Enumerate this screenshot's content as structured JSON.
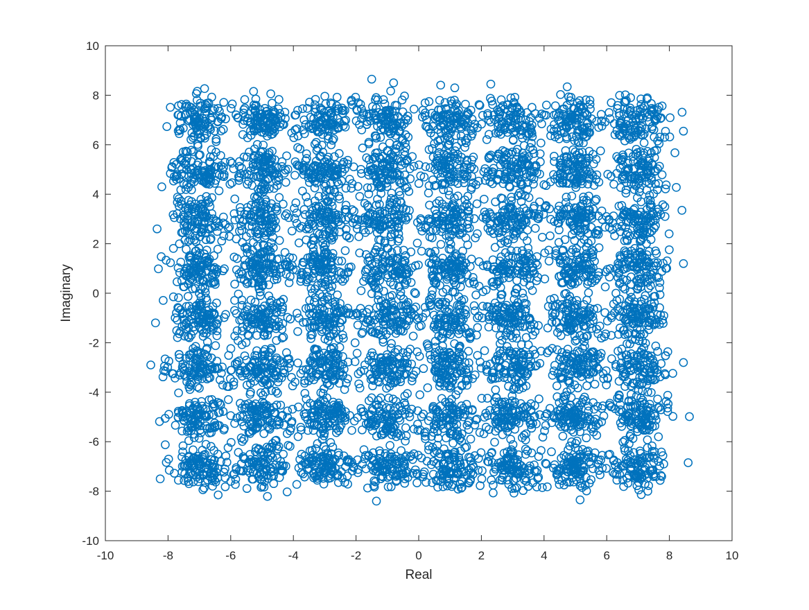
{
  "chart_data": {
    "type": "scatter",
    "title": "",
    "xlabel": "Real",
    "ylabel": "Imaginary",
    "xlim": [
      -10,
      10
    ],
    "ylim": [
      -10,
      10
    ],
    "xticks": [
      -10,
      -8,
      -6,
      -4,
      -2,
      0,
      2,
      4,
      6,
      8,
      10
    ],
    "yticks": [
      -10,
      -8,
      -6,
      -4,
      -2,
      0,
      2,
      4,
      6,
      8,
      10
    ],
    "xtick_labels": [
      "-10",
      "-8",
      "-6",
      "-4",
      "-2",
      "0",
      "2",
      "4",
      "6",
      "8",
      "10"
    ],
    "ytick_labels": [
      "-10",
      "-8",
      "-6",
      "-4",
      "-2",
      "0",
      "2",
      "4",
      "6",
      "8",
      "10"
    ],
    "grid": false,
    "marker": "circle-open",
    "marker_color": "#0072BD",
    "constellation": "64-QAM",
    "cluster_centers_x": [
      -7,
      -5,
      -3,
      -1,
      1,
      3,
      5,
      7
    ],
    "cluster_centers_y": [
      -7,
      -5,
      -3,
      -1,
      1,
      3,
      5,
      7
    ],
    "noise_spread": 0.45,
    "points_per_cluster": 110,
    "series": [
      {
        "x": [
          -8.55,
          -8.4,
          -8.35,
          8.6,
          8.45,
          8.45,
          -1.5,
          -1.35,
          1.15,
          8.45,
          8.4,
          -0.8,
          2.3,
          -8.25,
          -8.2,
          -6.4,
          5.15
        ],
        "y": [
          -2.9,
          -1.2,
          2.6,
          -6.85,
          1.2,
          6.55,
          8.65,
          -8.4,
          8.3,
          -2.8,
          3.35,
          8.5,
          8.45,
          -7.5,
          4.3,
          -8.15,
          -8.35
        ]
      }
    ]
  }
}
